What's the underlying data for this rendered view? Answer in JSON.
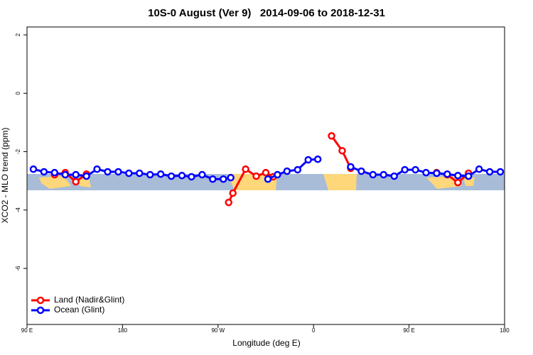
{
  "chart_data": {
    "type": "line",
    "title": "10S-0 August (Ver 9)   2014-09-06 to 2018-12-31",
    "xlabel": "Longitude (deg E)",
    "ylabel": "XCO2 - MLO trend (ppm)",
    "xlim": [
      90,
      540
    ],
    "xticks": [
      {
        "value": 90,
        "label": "90 E"
      },
      180,
      {
        "value": 270,
        "label": "90 W"
      },
      {
        "value": 360,
        "label": "0"
      },
      {
        "value": 450,
        "label": "90 E"
      },
      {
        "value": 540,
        "label": "180"
      }
    ],
    "ylim": [
      -7.92,
      2.27
    ],
    "yticks": [
      -6,
      -4,
      -2,
      0,
      2
    ],
    "legend": "bottom-left",
    "series": [
      {
        "name": "Land (Nadir&Glint)",
        "color": "#ff0000",
        "x": [
          116,
          126,
          136,
          146,
          null,
          280,
          284,
          296,
          306,
          315,
          322,
          null,
          377,
          387,
          395,
          null,
          476,
          486,
          496,
          506
        ],
        "values": [
          -2.79,
          -2.72,
          -3.03,
          -2.77,
          null,
          -3.74,
          -3.42,
          -2.6,
          -2.84,
          -2.72,
          -2.86,
          null,
          -1.46,
          -1.97,
          -2.57,
          null,
          -2.72,
          -2.79,
          -3.06,
          -2.74
        ]
      },
      {
        "name": "Ocean (Glint)",
        "color": "#0000ff",
        "x": [
          96,
          106,
          116,
          126,
          136,
          146,
          156,
          166,
          176,
          186,
          196,
          206,
          216,
          226,
          236,
          245,
          255,
          265,
          275,
          282,
          null,
          317,
          326,
          335,
          345,
          355,
          364,
          null,
          395,
          405,
          416,
          426,
          436,
          446,
          456,
          466,
          476,
          486,
          496,
          506,
          516,
          526,
          536
        ],
        "values": [
          -2.6,
          -2.69,
          -2.72,
          -2.79,
          -2.79,
          -2.84,
          -2.6,
          -2.69,
          -2.69,
          -2.74,
          -2.74,
          -2.79,
          -2.77,
          -2.84,
          -2.82,
          -2.86,
          -2.79,
          -2.94,
          -2.94,
          -2.89,
          null,
          -2.94,
          -2.79,
          -2.67,
          -2.62,
          -2.28,
          -2.26,
          null,
          -2.52,
          -2.67,
          -2.79,
          -2.79,
          -2.84,
          -2.62,
          -2.62,
          -2.72,
          -2.74,
          -2.77,
          -2.82,
          -2.84,
          -2.6,
          -2.69,
          -2.69
        ]
      }
    ]
  }
}
